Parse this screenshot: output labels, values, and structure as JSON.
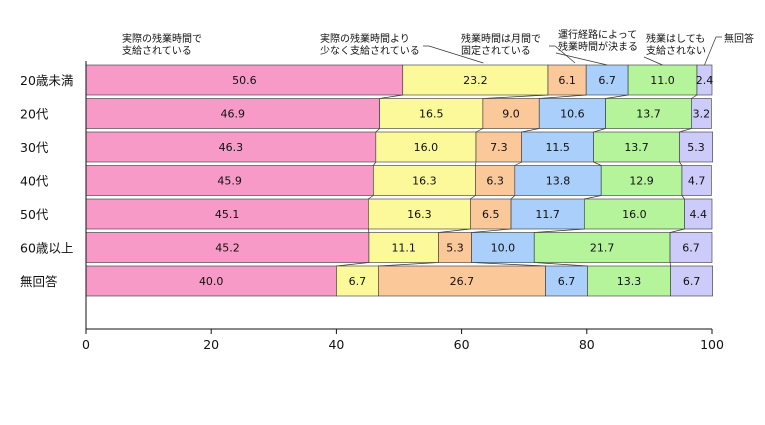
{
  "chart_data": {
    "type": "bar",
    "orientation": "horizontal",
    "stacked": true,
    "title": "",
    "xlabel": "",
    "ylabel": "",
    "xlim": [
      0,
      100
    ],
    "x_ticks": [
      "0",
      "20",
      "40",
      "60",
      "80",
      "100"
    ],
    "categories": [
      "20歳未満",
      "20代",
      "30代",
      "40代",
      "50代",
      "60歳以上",
      "無回答"
    ],
    "series": [
      {
        "name": "実際の残業時間で\n支給されている",
        "color": "#f79ac8",
        "values": [
          50.6,
          46.9,
          46.3,
          45.9,
          45.1,
          45.2,
          40.0
        ],
        "labels": [
          "50.6",
          "46.9",
          "46.3",
          "45.9",
          "45.1",
          "45.2",
          "40.0"
        ]
      },
      {
        "name": "実際の残業時間より\n少なく支給されている",
        "color": "#fbf99a",
        "values": [
          23.2,
          16.5,
          16.0,
          16.3,
          16.3,
          11.1,
          6.7
        ],
        "labels": [
          "23.2",
          "16.5",
          "16.0",
          "16.3",
          "16.3",
          "11.1",
          "6.7"
        ]
      },
      {
        "name": "残業時間は月間で\n固定されている",
        "color": "#fbc89a",
        "values": [
          6.1,
          9.0,
          7.3,
          6.3,
          6.5,
          5.3,
          26.7
        ],
        "labels": [
          "6.1",
          "9.0",
          "7.3",
          "6.3",
          "6.5",
          "5.3",
          "26.7"
        ]
      },
      {
        "name": "運行経路によって\n残業時間が決まる",
        "color": "#a9cffa",
        "values": [
          6.7,
          10.6,
          11.5,
          13.8,
          11.7,
          10.0,
          6.7
        ],
        "labels": [
          "6.7",
          "10.6",
          "11.5",
          "13.8",
          "11.7",
          "10.0",
          "6.7"
        ]
      },
      {
        "name": "残業はしても\n支給されない",
        "color": "#b6f49c",
        "values": [
          11.0,
          13.7,
          13.7,
          12.9,
          16.0,
          21.7,
          13.3
        ],
        "labels": [
          "11.0",
          "13.7",
          "13.7",
          "12.9",
          "16.0",
          "21.7",
          "13.3"
        ]
      },
      {
        "name": "無回答",
        "color": "#cdcbfa",
        "values": [
          2.4,
          3.2,
          5.3,
          4.7,
          4.4,
          6.7,
          6.7
        ],
        "labels": [
          "2.4",
          "3.2",
          "5.3",
          "4.7",
          "4.4",
          "6.7",
          "6.7"
        ]
      }
    ],
    "grid": false,
    "legend": "top, with leader lines to first bar"
  }
}
